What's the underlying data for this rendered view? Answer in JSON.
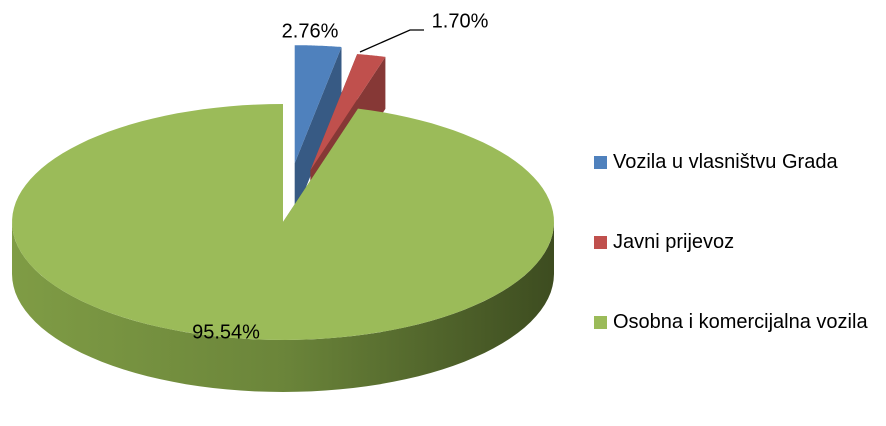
{
  "chart_data": {
    "type": "pie",
    "categories": [
      "Vozila u vlasništvu Grada",
      "Javni prijevoz",
      "Osobna i komercijalna vozila"
    ],
    "values": [
      2.76,
      1.7,
      95.54
    ],
    "value_labels": [
      "2.76%",
      "1.70%",
      "95.54%"
    ],
    "colors": [
      "#4f81bd",
      "#c0504d",
      "#9bbb59"
    ],
    "legend": "right"
  }
}
